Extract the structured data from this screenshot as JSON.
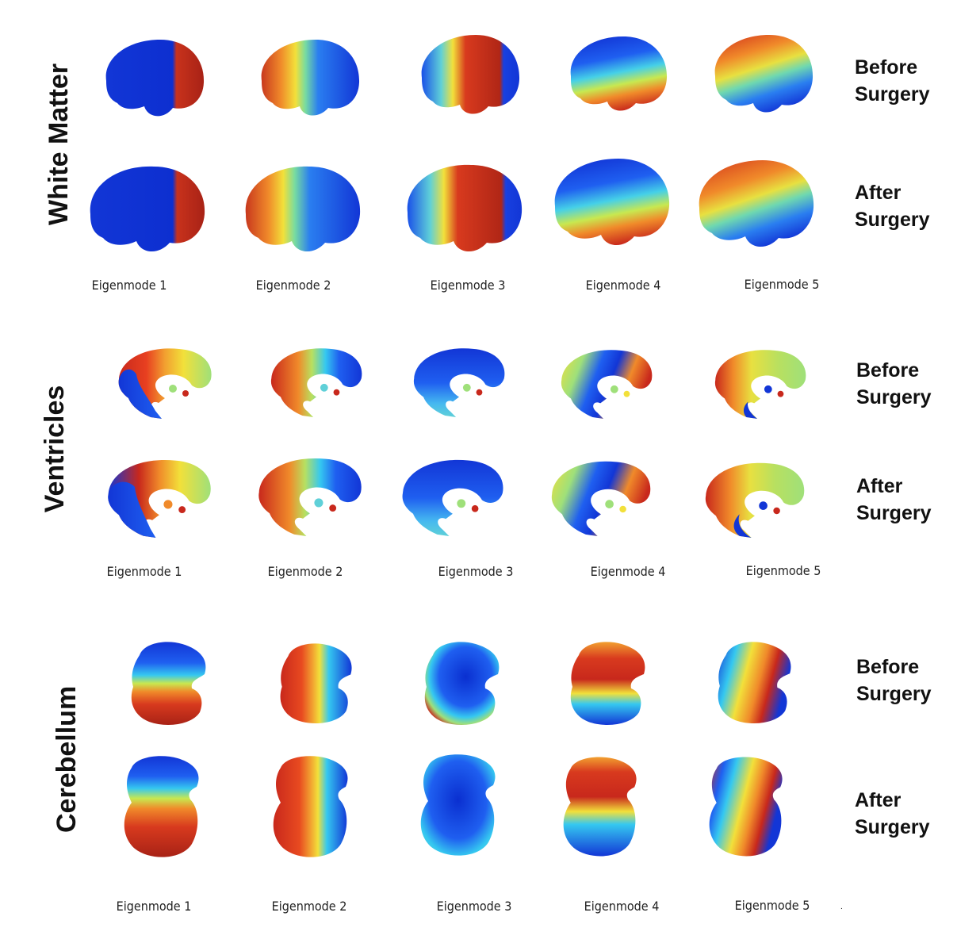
{
  "sections": [
    {
      "label": "White Matter",
      "before": [
        "Before",
        "Surgery"
      ],
      "after": [
        "After",
        "Surgery"
      ],
      "modes": [
        "Eigenmode 1",
        "Eigenmode 2",
        "Eigenmode 3",
        "Eigenmode 4",
        "Eigenmode 5"
      ]
    },
    {
      "label": "Ventricles",
      "before": [
        "Before",
        "Surgery"
      ],
      "after": [
        "After",
        "Surgery"
      ],
      "modes": [
        "Eigenmode 1",
        "Eigenmode 2",
        "Eigenmode 3",
        "Eigenmode 4",
        "Eigenmode 5"
      ]
    },
    {
      "label": "Cerebellum",
      "before": [
        "Before",
        "Surgery"
      ],
      "after": [
        "After",
        "Surgery"
      ],
      "modes": [
        "Eigenmode 1",
        "Eigenmode 2",
        "Eigenmode 3",
        "Eigenmode 4",
        "Eigenmode 5"
      ]
    }
  ],
  "trailing_mark": ".",
  "colors": {
    "deep_blue": "#0a2fd8",
    "blue": "#1f5ff0",
    "cyan": "#35c8f0",
    "green": "#9fe07a",
    "yellow": "#f2e03a",
    "orange": "#f08a2a",
    "red": "#c8281c"
  }
}
